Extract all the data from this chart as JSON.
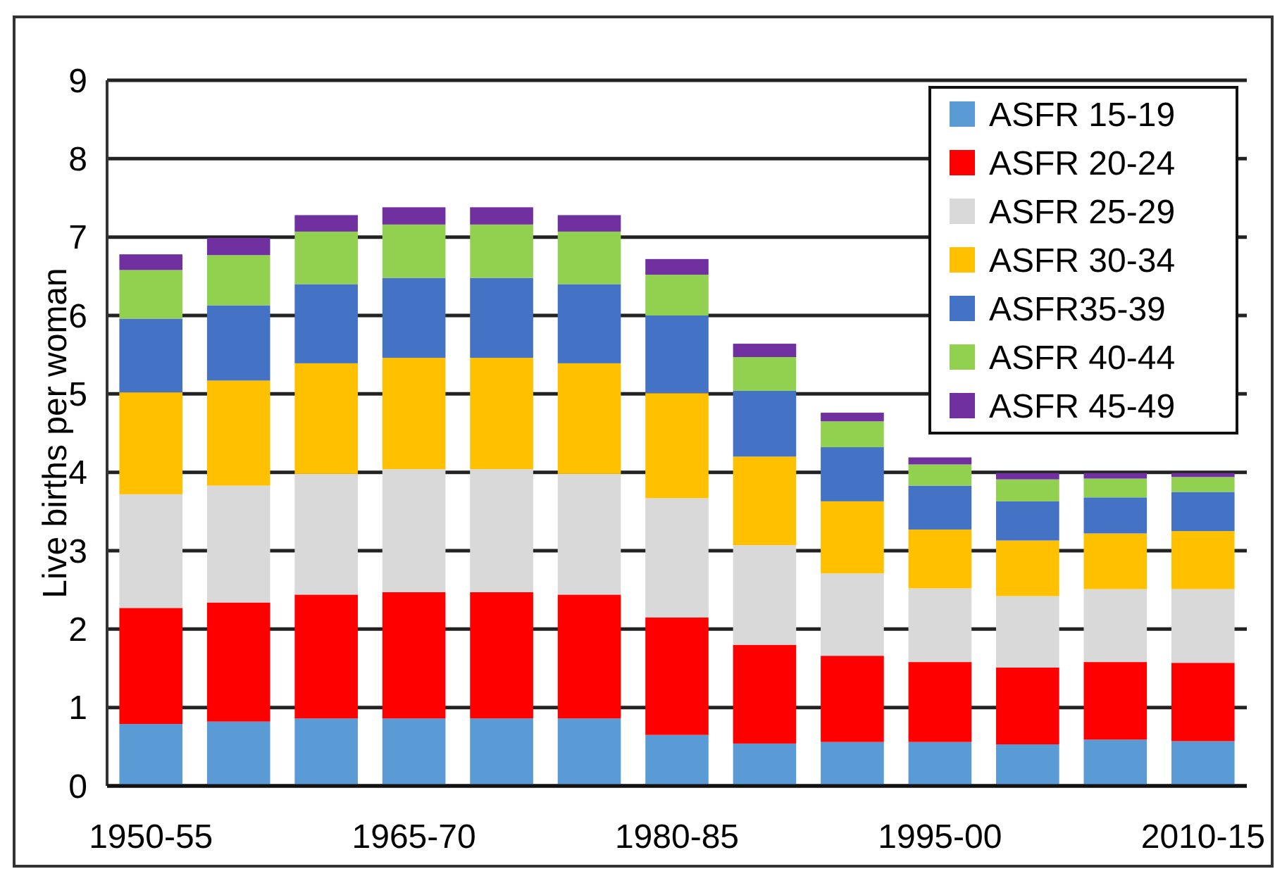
{
  "chart_data": {
    "type": "bar",
    "stacked": true,
    "ylabel": "Live births per woman",
    "categories": [
      "1950-55",
      null,
      null,
      "1965-70",
      null,
      null,
      "1980-85",
      null,
      null,
      "1995-00",
      null,
      null,
      "2010-15"
    ],
    "ylim": [
      0,
      9
    ],
    "yticks": [
      0,
      1,
      2,
      3,
      4,
      5,
      6,
      7,
      8,
      9
    ],
    "grid": "y",
    "legend": "top right",
    "series": [
      {
        "name": "ASFR 15-19",
        "color": "#5b9bd5",
        "values": [
          0.79,
          0.82,
          0.86,
          0.86,
          0.86,
          0.86,
          0.65,
          0.54,
          0.56,
          0.56,
          0.53,
          0.59,
          0.57
        ]
      },
      {
        "name": "ASFR 20-24",
        "color": "#ff0000",
        "values": [
          1.48,
          1.52,
          1.58,
          1.61,
          1.61,
          1.58,
          1.5,
          1.26,
          1.1,
          1.02,
          0.98,
          0.99,
          1.0
        ]
      },
      {
        "name": "ASFR 25-29",
        "color": "#d9d9d9",
        "values": [
          1.45,
          1.49,
          1.54,
          1.57,
          1.57,
          1.54,
          1.52,
          1.27,
          1.05,
          0.94,
          0.91,
          0.93,
          0.94
        ]
      },
      {
        "name": "ASFR 30-34",
        "color": "#ffc000",
        "values": [
          1.3,
          1.34,
          1.41,
          1.42,
          1.42,
          1.41,
          1.34,
          1.13,
          0.92,
          0.75,
          0.71,
          0.71,
          0.74
        ]
      },
      {
        "name": "ASFR35-39",
        "color": "#4472c4",
        "values": [
          0.94,
          0.96,
          1.01,
          1.02,
          1.02,
          1.01,
          0.99,
          0.84,
          0.69,
          0.56,
          0.5,
          0.46,
          0.5
        ]
      },
      {
        "name": "ASFR 40-44",
        "color": "#92d050",
        "values": [
          0.62,
          0.64,
          0.67,
          0.68,
          0.68,
          0.67,
          0.52,
          0.43,
          0.33,
          0.27,
          0.28,
          0.24,
          0.19
        ]
      },
      {
        "name": "ASFR 45-49",
        "color": "#7030a0",
        "values": [
          0.2,
          0.22,
          0.21,
          0.22,
          0.22,
          0.21,
          0.2,
          0.17,
          0.11,
          0.09,
          0.08,
          0.07,
          0.05
        ]
      }
    ]
  }
}
